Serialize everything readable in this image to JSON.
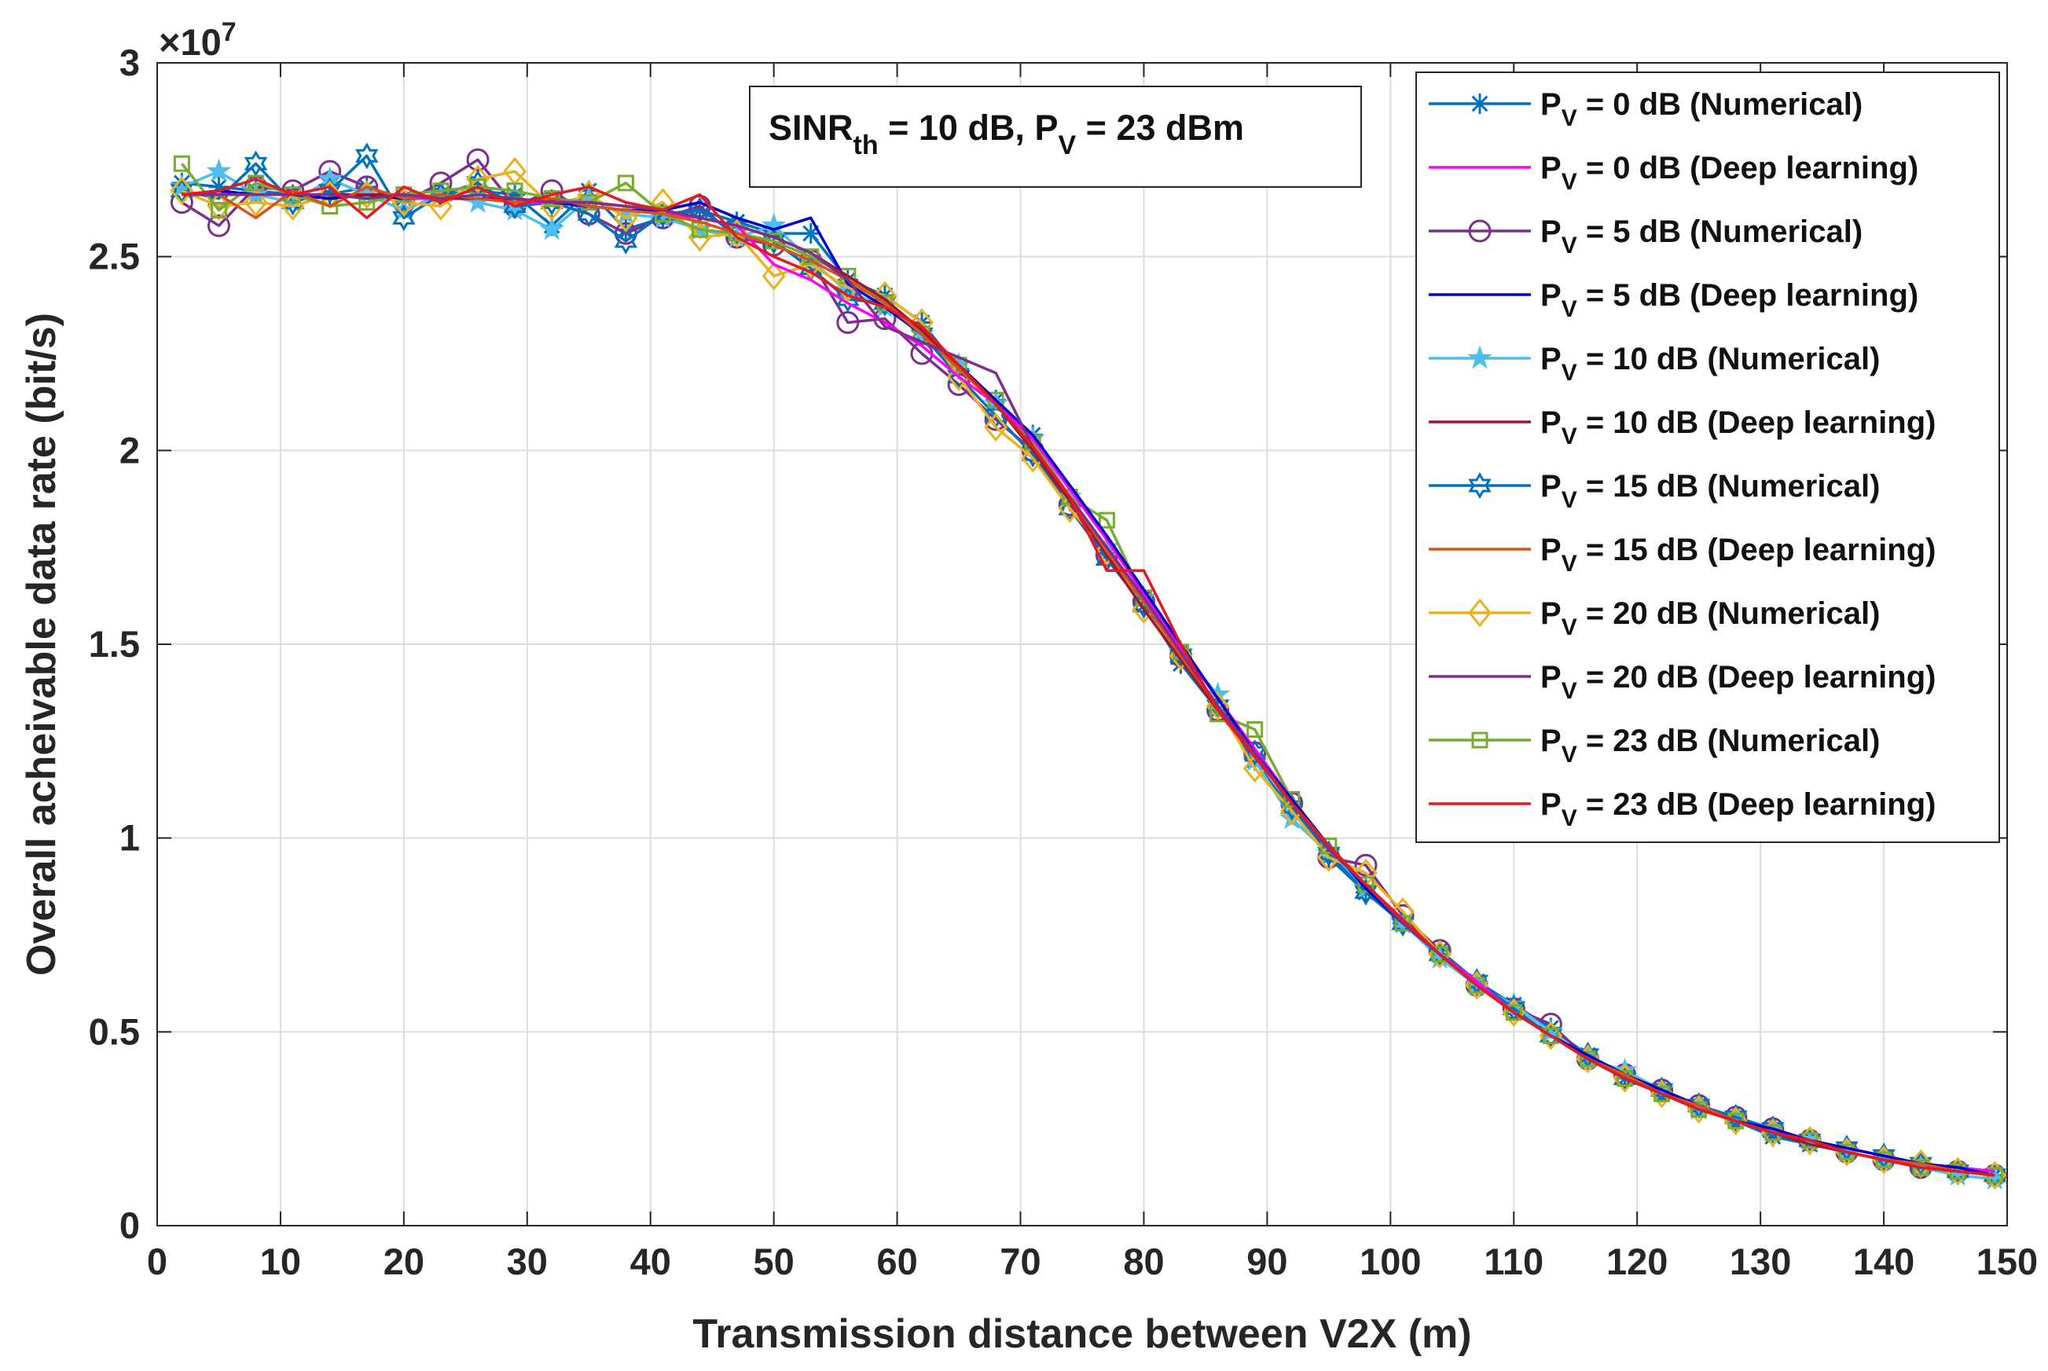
{
  "chart_data": {
    "type": "line",
    "title": "",
    "xlabel": "Transmission distance between V2X (m)",
    "ylabel": "Overall acheivable data rate (bit/s)",
    "y_exponent_label": "×10",
    "y_exponent_power": "7",
    "xlim": [
      0,
      150
    ],
    "ylim": [
      0,
      3
    ],
    "xticks": [
      "0",
      "10",
      "20",
      "30",
      "40",
      "50",
      "60",
      "70",
      "80",
      "90",
      "100",
      "110",
      "120",
      "130",
      "140",
      "150"
    ],
    "yticks": [
      "0",
      "0.5",
      "1",
      "1.5",
      "2",
      "2.5",
      "3"
    ],
    "grid": true,
    "legend_position": "top-right",
    "annotation": {
      "line1_a": "SINR",
      "line1_a_sub": "th",
      "line1_b": " = 10 dB, P",
      "line1_b_sub": "V",
      "line1_c": " = 23 dBm"
    },
    "curve_model": "data rate ≈ 2.66 / (1 + exp((x - 85) / 13.5)) + 0.07, values in units of 10^7 bit/s",
    "x": [
      2,
      5,
      8,
      11,
      14,
      17,
      20,
      23,
      26,
      29,
      32,
      35,
      38,
      41,
      44,
      47,
      50,
      53,
      56,
      59,
      62,
      65,
      68,
      71,
      74,
      77,
      80,
      83,
      86,
      89,
      92,
      95,
      98,
      101,
      104,
      107,
      110,
      113,
      116,
      119,
      122,
      125,
      128,
      131,
      134,
      137,
      140,
      143,
      146,
      149
    ],
    "series": [
      {
        "name": "= 0 dB (Numerical)",
        "color": "#0072BD",
        "marker": "asterisk",
        "values": [
          2.69,
          2.68,
          2.67,
          2.66,
          2.66,
          2.68,
          2.65,
          2.66,
          2.67,
          2.66,
          2.58,
          2.67,
          2.57,
          2.6,
          2.62,
          2.59,
          2.56,
          2.56,
          2.44,
          2.4,
          2.33,
          2.21,
          2.13,
          2.04,
          1.87,
          1.73,
          1.6,
          1.45,
          1.33,
          1.2,
          1.07,
          0.95,
          0.86,
          0.78,
          0.71,
          0.63,
          0.57,
          0.51,
          0.44,
          0.38,
          0.35,
          0.31,
          0.27,
          0.23,
          0.21,
          0.19,
          0.17,
          0.15,
          0.14,
          0.13
        ]
      },
      {
        "name": "= 0 dB (Deep learning)",
        "color": "#FF00FF",
        "marker": "none",
        "values": [
          2.66,
          2.66,
          2.66,
          2.66,
          2.66,
          2.66,
          2.65,
          2.65,
          2.65,
          2.64,
          2.64,
          2.63,
          2.62,
          2.61,
          2.6,
          2.58,
          2.48,
          2.44,
          2.38,
          2.33,
          2.27,
          2.19,
          2.12,
          2.03,
          1.9,
          1.77,
          1.63,
          1.49,
          1.36,
          1.23,
          1.1,
          0.98,
          0.88,
          0.79,
          0.7,
          0.63,
          0.55,
          0.49,
          0.43,
          0.39,
          0.34,
          0.31,
          0.27,
          0.25,
          0.22,
          0.2,
          0.18,
          0.16,
          0.15,
          0.14
        ]
      },
      {
        "name": "= 5 dB (Numerical)",
        "color": "#7E2F8E",
        "marker": "circle",
        "values": [
          2.64,
          2.58,
          2.68,
          2.67,
          2.72,
          2.68,
          2.64,
          2.69,
          2.75,
          2.63,
          2.67,
          2.61,
          2.56,
          2.6,
          2.63,
          2.55,
          2.53,
          2.49,
          2.33,
          2.34,
          2.25,
          2.17,
          2.08,
          2.0,
          1.86,
          1.73,
          1.61,
          1.47,
          1.33,
          1.22,
          1.09,
          0.95,
          0.93,
          0.8,
          0.71,
          0.62,
          0.56,
          0.52,
          0.43,
          0.39,
          0.35,
          0.31,
          0.28,
          0.25,
          0.22,
          0.19,
          0.17,
          0.15,
          0.14,
          0.13
        ]
      },
      {
        "name": "= 5 dB (Deep learning)",
        "color": "#0000CD",
        "marker": "none",
        "values": [
          2.66,
          2.67,
          2.66,
          2.66,
          2.65,
          2.66,
          2.65,
          2.66,
          2.65,
          2.65,
          2.64,
          2.63,
          2.62,
          2.62,
          2.64,
          2.6,
          2.57,
          2.6,
          2.43,
          2.37,
          2.3,
          2.22,
          2.13,
          2.04,
          1.91,
          1.78,
          1.64,
          1.5,
          1.36,
          1.22,
          1.1,
          0.98,
          0.87,
          0.78,
          0.7,
          0.62,
          0.55,
          0.49,
          0.44,
          0.39,
          0.35,
          0.31,
          0.27,
          0.25,
          0.22,
          0.2,
          0.18,
          0.16,
          0.15,
          0.13
        ]
      },
      {
        "name": "= 10 dB (Numerical)",
        "color": "#4DBEEE",
        "marker": "pentagram",
        "values": [
          2.68,
          2.72,
          2.66,
          2.64,
          2.7,
          2.66,
          2.62,
          2.66,
          2.64,
          2.62,
          2.57,
          2.65,
          2.61,
          2.6,
          2.57,
          2.55,
          2.58,
          2.49,
          2.41,
          2.37,
          2.3,
          2.22,
          2.12,
          2.03,
          1.88,
          1.75,
          1.62,
          1.48,
          1.37,
          1.2,
          1.05,
          0.96,
          0.87,
          0.78,
          0.69,
          0.62,
          0.57,
          0.5,
          0.43,
          0.4,
          0.35,
          0.3,
          0.28,
          0.25,
          0.22,
          0.19,
          0.17,
          0.15,
          0.13,
          0.12
        ]
      },
      {
        "name": "= 10 dB (Deep learning)",
        "color": "#A2142F",
        "marker": "none",
        "values": [
          2.66,
          2.66,
          2.66,
          2.66,
          2.66,
          2.66,
          2.66,
          2.65,
          2.65,
          2.65,
          2.64,
          2.64,
          2.63,
          2.62,
          2.6,
          2.58,
          2.55,
          2.51,
          2.45,
          2.39,
          2.31,
          2.22,
          2.12,
          2.0,
          1.87,
          1.73,
          1.59,
          1.46,
          1.33,
          1.21,
          1.09,
          0.98,
          0.88,
          0.79,
          0.7,
          0.62,
          0.55,
          0.49,
          0.43,
          0.38,
          0.34,
          0.3,
          0.27,
          0.24,
          0.21,
          0.19,
          0.17,
          0.15,
          0.14,
          0.13
        ]
      },
      {
        "name": "= 15 dB (Numerical)",
        "color": "#0072BD",
        "marker": "hexagram",
        "values": [
          2.67,
          2.65,
          2.74,
          2.64,
          2.67,
          2.76,
          2.6,
          2.66,
          2.69,
          2.63,
          2.64,
          2.61,
          2.54,
          2.61,
          2.62,
          2.56,
          2.54,
          2.47,
          2.39,
          2.38,
          2.3,
          2.19,
          2.09,
          1.99,
          1.85,
          1.72,
          1.6,
          1.47,
          1.34,
          1.22,
          1.08,
          0.96,
          0.86,
          0.78,
          0.7,
          0.63,
          0.56,
          0.49,
          0.44,
          0.38,
          0.35,
          0.31,
          0.28,
          0.25,
          0.22,
          0.2,
          0.18,
          0.16,
          0.14,
          0.13
        ]
      },
      {
        "name": "= 15 dB (Deep learning)",
        "color": "#D95319",
        "marker": "none",
        "values": [
          2.66,
          2.66,
          2.6,
          2.67,
          2.63,
          2.68,
          2.65,
          2.66,
          2.65,
          2.64,
          2.65,
          2.63,
          2.62,
          2.61,
          2.59,
          2.56,
          2.53,
          2.49,
          2.44,
          2.38,
          2.3,
          2.21,
          2.12,
          2.01,
          1.88,
          1.74,
          1.61,
          1.47,
          1.34,
          1.21,
          1.09,
          0.98,
          0.88,
          0.79,
          0.7,
          0.62,
          0.55,
          0.49,
          0.43,
          0.39,
          0.34,
          0.31,
          0.27,
          0.24,
          0.22,
          0.19,
          0.17,
          0.16,
          0.14,
          0.13
        ]
      },
      {
        "name": "= 20 dB (Numerical)",
        "color": "#EDB120",
        "marker": "diamond",
        "values": [
          2.67,
          2.63,
          2.64,
          2.63,
          2.66,
          2.66,
          2.64,
          2.63,
          2.7,
          2.72,
          2.63,
          2.66,
          2.6,
          2.64,
          2.55,
          2.56,
          2.45,
          2.48,
          2.42,
          2.4,
          2.33,
          2.19,
          2.06,
          1.98,
          1.85,
          1.74,
          1.59,
          1.47,
          1.34,
          1.18,
          1.07,
          0.95,
          0.91,
          0.81,
          0.7,
          0.62,
          0.55,
          0.49,
          0.43,
          0.38,
          0.34,
          0.3,
          0.27,
          0.24,
          0.22,
          0.19,
          0.17,
          0.16,
          0.14,
          0.13
        ]
      },
      {
        "name": "= 20 dB (Deep learning)",
        "color": "#7E2F8E",
        "marker": "none",
        "values": [
          2.66,
          2.66,
          2.66,
          2.66,
          2.66,
          2.65,
          2.66,
          2.65,
          2.66,
          2.65,
          2.64,
          2.64,
          2.63,
          2.62,
          2.6,
          2.58,
          2.55,
          2.51,
          2.44,
          2.32,
          2.28,
          2.24,
          2.2,
          2.01,
          1.88,
          1.75,
          1.62,
          1.48,
          1.34,
          1.22,
          1.09,
          0.97,
          0.88,
          0.78,
          0.7,
          0.62,
          0.55,
          0.49,
          0.43,
          0.38,
          0.34,
          0.3,
          0.27,
          0.24,
          0.22,
          0.19,
          0.17,
          0.15,
          0.14,
          0.13
        ]
      },
      {
        "name": "= 23 dB (Numerical)",
        "color": "#77AC30",
        "marker": "square",
        "values": [
          2.74,
          2.62,
          2.69,
          2.66,
          2.63,
          2.64,
          2.66,
          2.67,
          2.68,
          2.67,
          2.65,
          2.64,
          2.69,
          2.61,
          2.57,
          2.56,
          2.54,
          2.5,
          2.45,
          2.38,
          2.3,
          2.22,
          2.13,
          2.02,
          1.88,
          1.82,
          1.62,
          1.48,
          1.32,
          1.28,
          1.1,
          0.98,
          0.88,
          0.78,
          0.7,
          0.62,
          0.55,
          0.49,
          0.43,
          0.38,
          0.34,
          0.3,
          0.27,
          0.24,
          0.22,
          0.19,
          0.17,
          0.15,
          0.14,
          0.13
        ]
      },
      {
        "name": "= 23 dB (Deep learning)",
        "color": "#E6191E",
        "marker": "none",
        "values": [
          2.66,
          2.67,
          2.7,
          2.66,
          2.68,
          2.6,
          2.68,
          2.64,
          2.68,
          2.63,
          2.66,
          2.68,
          2.64,
          2.62,
          2.66,
          2.55,
          2.5,
          2.46,
          2.4,
          2.37,
          2.32,
          2.22,
          2.12,
          2.01,
          1.88,
          1.69,
          1.69,
          1.5,
          1.33,
          1.21,
          1.09,
          0.98,
          0.88,
          0.79,
          0.7,
          0.62,
          0.55,
          0.49,
          0.43,
          0.38,
          0.34,
          0.3,
          0.27,
          0.24,
          0.22,
          0.19,
          0.17,
          0.15,
          0.14,
          0.13
        ]
      }
    ],
    "legend_prefix": "P",
    "legend_prefix_sub": "V"
  }
}
